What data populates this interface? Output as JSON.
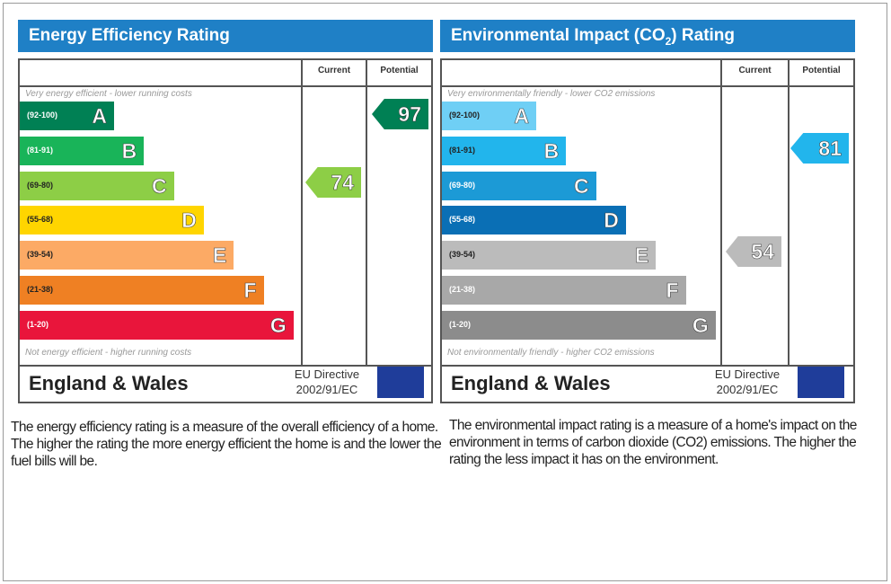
{
  "energy": {
    "title": "Energy Efficiency Rating",
    "current_label": "Current",
    "potential_label": "Potential",
    "top_note": "Very energy efficient - lower running costs",
    "bottom_note": "Not energy efficient - higher running costs",
    "bands": [
      {
        "range": "(92-100)",
        "letter": "A",
        "color": "#008054"
      },
      {
        "range": "(81-91)",
        "letter": "B",
        "color": "#19b459"
      },
      {
        "range": "(69-80)",
        "letter": "C",
        "color": "#8dce46"
      },
      {
        "range": "(55-68)",
        "letter": "D",
        "color": "#ffd500"
      },
      {
        "range": "(39-54)",
        "letter": "E",
        "color": "#fcaa65"
      },
      {
        "range": "(21-38)",
        "letter": "F",
        "color": "#ef8023"
      },
      {
        "range": "(1-20)",
        "letter": "G",
        "color": "#e9153b"
      }
    ],
    "current": "74",
    "current_color": "#8dce46",
    "potential": "97",
    "potential_color": "#008054",
    "region": "England & Wales",
    "directive_line1": "EU Directive",
    "directive_line2": "2002/91/EC",
    "description": "The energy efficiency rating is a measure of the overall efficiency of a home. The higher the rating the more energy efficient the home is and the lower the fuel bills will be."
  },
  "environment": {
    "title_pre": "Environmental Impact (CO",
    "title_sub": "2",
    "title_post": ") Rating",
    "current_label": "Current",
    "potential_label": "Potential",
    "top_note": "Very environmentally friendly - lower CO2 emissions",
    "bottom_note": "Not environmentally friendly - higher CO2 emissions",
    "bands": [
      {
        "range": "(92-100)",
        "letter": "A",
        "color": "#6fcff5"
      },
      {
        "range": "(81-91)",
        "letter": "B",
        "color": "#22b5ec"
      },
      {
        "range": "(69-80)",
        "letter": "C",
        "color": "#1c9ad6"
      },
      {
        "range": "(55-68)",
        "letter": "D",
        "color": "#0a6fb5"
      },
      {
        "range": "(39-54)",
        "letter": "E",
        "color": "#bbbbbb"
      },
      {
        "range": "(21-38)",
        "letter": "F",
        "color": "#a8a8a8"
      },
      {
        "range": "(1-20)",
        "letter": "G",
        "color": "#8c8c8c"
      }
    ],
    "current": "54",
    "current_color": "#bbbbbb",
    "potential": "81",
    "potential_color": "#22b5ec",
    "region": "England & Wales",
    "directive_line1": "EU Directive",
    "directive_line2": "2002/91/EC",
    "description": "The environmental impact rating is a measure of a home's impact on the environment in terms of carbon dioxide (CO2) emissions. The higher the rating the less impact it has on the environment."
  }
}
